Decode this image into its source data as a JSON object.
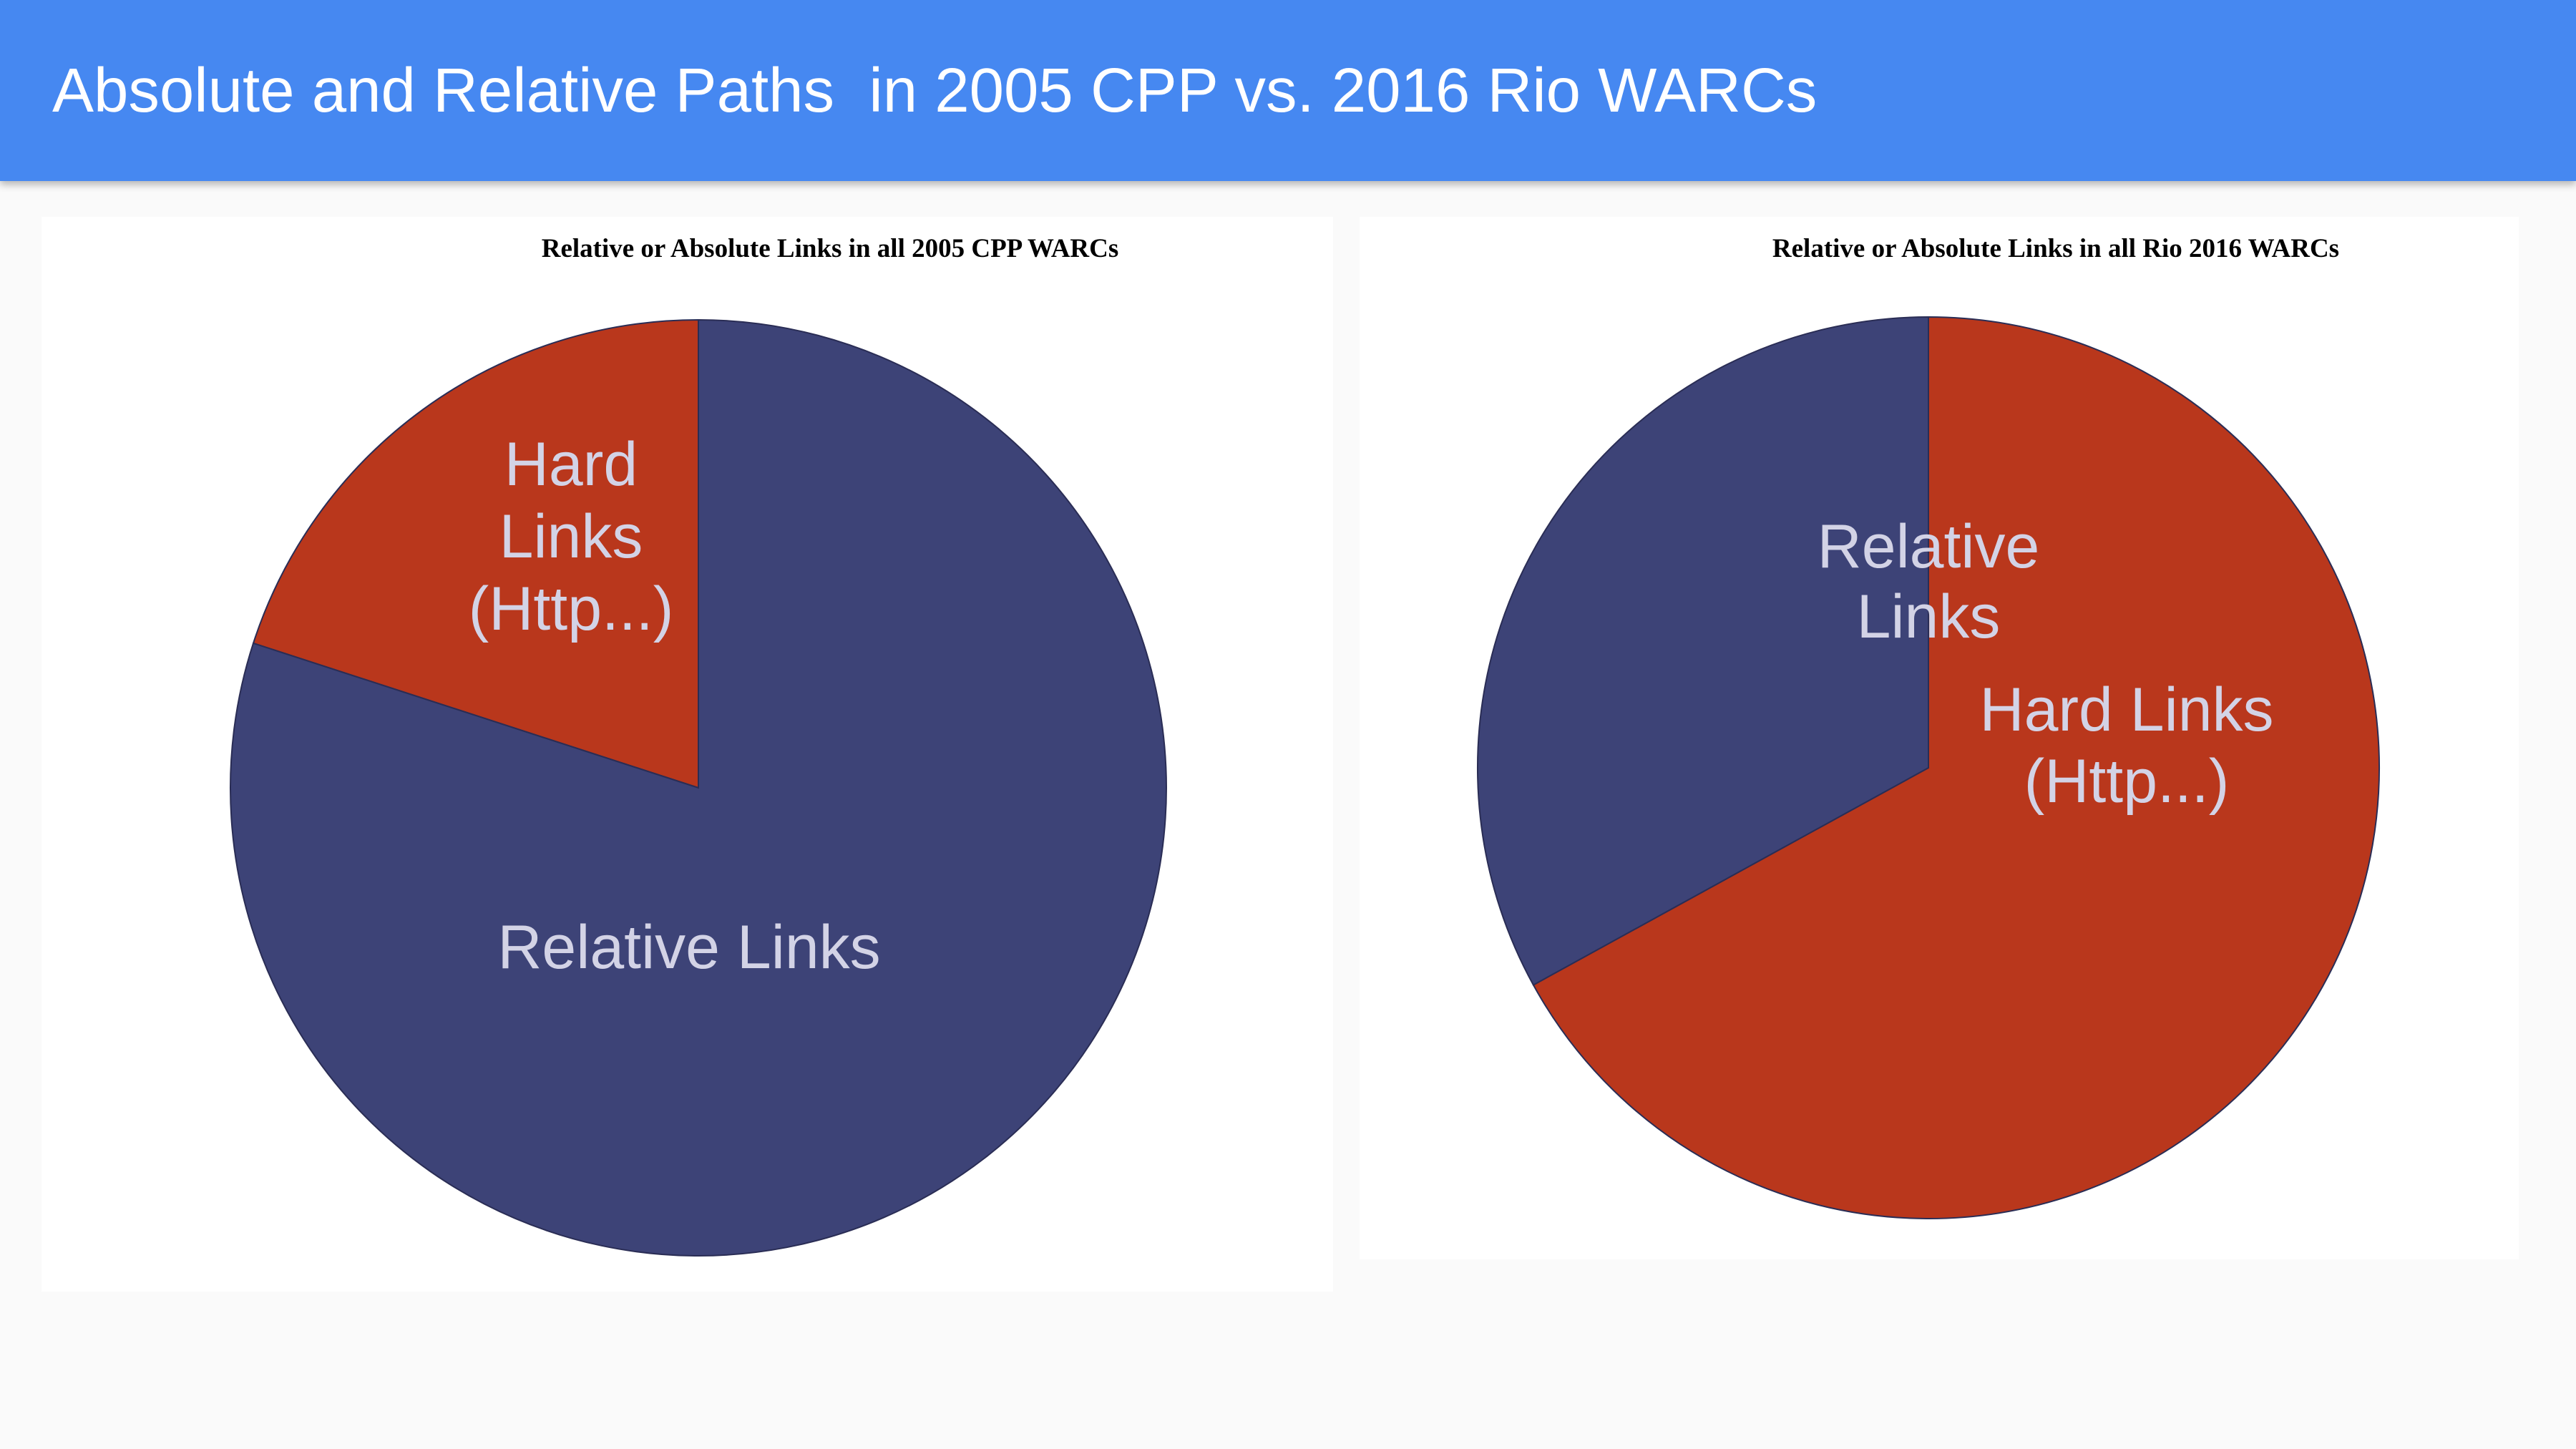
{
  "header": {
    "title": "Absolute and Relative Paths  in 2005 CPP vs. 2016 Rio WARCs"
  },
  "colors": {
    "header_background": "#4688f1",
    "relative_links": "#3d4377",
    "hard_links": "#b9371c",
    "slice_label_text": "#d3d3e6"
  },
  "chart_data": [
    {
      "type": "pie",
      "title": "Relative or Absolute Links in all 2005 CPP WARCs",
      "slices": [
        {
          "label": "Hard Links (Http...)",
          "value": 20,
          "color": "#b9371c"
        },
        {
          "label": "Relative Links",
          "value": 80,
          "color": "#3d4377"
        }
      ],
      "legend": "none"
    },
    {
      "type": "pie",
      "title": "Relative or Absolute Links in all Rio 2016 WARCs",
      "slices": [
        {
          "label": "Hard Links (Http...)",
          "value": 67,
          "color": "#b9371c"
        },
        {
          "label": "Relative Links",
          "value": 33,
          "color": "#3d4377"
        }
      ],
      "legend": "none"
    }
  ]
}
